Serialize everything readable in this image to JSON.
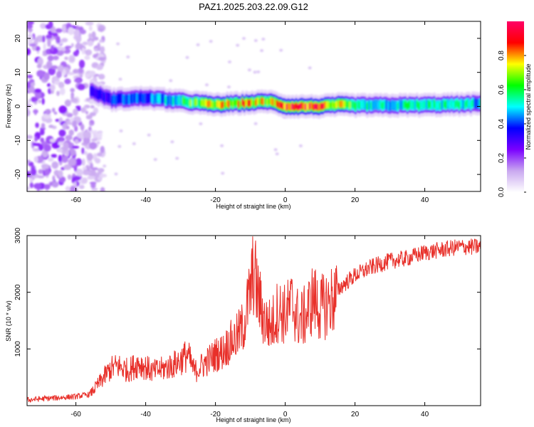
{
  "title": "PAZ1.2025.203.22.09.G12",
  "chart_data": [
    {
      "type": "heatmap",
      "title": "PAZ1.2025.203.22.09.G12",
      "xlabel": "Height of straight line (km)",
      "ylabel": "Frequency (Hz)",
      "xlim": [
        -74,
        56
      ],
      "ylim": [
        -25,
        25
      ],
      "xticks": [
        -60,
        -40,
        -20,
        0,
        20,
        40
      ],
      "yticks": [
        -20,
        -10,
        0,
        10,
        20
      ],
      "colorbar": {
        "label": "Normalized spectral amplitude",
        "range": [
          0,
          1
        ],
        "ticks": [
          0.0,
          0.2,
          0.4,
          0.6,
          0.8
        ],
        "colors": [
          "#ffffff",
          "#c9a8f0",
          "#7a00ff",
          "#0000ff",
          "#00ffff",
          "#00ff00",
          "#ffff00",
          "#ff0000",
          "#ff0066"
        ]
      },
      "ridge": {
        "x": [
          -56,
          -50,
          -40,
          -30,
          -20,
          -12,
          -5,
          0,
          5,
          10,
          15,
          20,
          30,
          40,
          50,
          56
        ],
        "frequency_hz": [
          4.5,
          2.0,
          2.5,
          1.5,
          0.5,
          1.0,
          1.5,
          0.0,
          0.0,
          0.0,
          0.5,
          0.3,
          0.3,
          0.4,
          0.6,
          0.8
        ],
        "peak_amplitude": [
          0.3,
          0.4,
          0.45,
          0.6,
          0.8,
          0.85,
          0.75,
          0.9,
          0.95,
          0.9,
          0.8,
          0.6,
          0.55,
          0.6,
          0.55,
          0.5
        ]
      },
      "noise_region_x": [
        -74,
        -52
      ],
      "grid": false
    },
    {
      "type": "line",
      "xlabel": "Height of straight line (km)",
      "ylabel": "SNR (10 * v/v)",
      "xlim": [
        -74,
        56
      ],
      "ylim": [
        0,
        3000
      ],
      "xticks": [
        -60,
        -40,
        -20,
        0,
        20,
        40
      ],
      "yticks": [
        1000,
        2000,
        3000
      ],
      "color": "#e8302a",
      "series": [
        {
          "x": [
            -74,
            -70,
            -65,
            -60,
            -56,
            -52,
            -50,
            -48,
            -45,
            -42,
            -40,
            -38,
            -35,
            -32,
            -30,
            -28,
            -26,
            -24,
            -22,
            -20,
            -18,
            -16,
            -14,
            -12,
            -10,
            -9,
            -8,
            -6,
            -4,
            -2,
            0,
            2,
            4,
            6,
            8,
            10,
            12,
            14,
            16,
            18,
            20,
            25,
            30,
            35,
            40,
            45,
            50,
            56
          ],
          "y": [
            100,
            120,
            140,
            160,
            200,
            500,
            650,
            700,
            620,
            750,
            680,
            600,
            650,
            720,
            800,
            900,
            600,
            700,
            800,
            900,
            950,
            1100,
            1200,
            1400,
            2000,
            2400,
            2000,
            1500,
            1400,
            1700,
            1600,
            1800,
            1500,
            1600,
            1900,
            1700,
            1800,
            1900,
            2100,
            2200,
            2300,
            2450,
            2550,
            2600,
            2700,
            2750,
            2800,
            2800
          ]
        }
      ],
      "grid": false
    }
  ]
}
